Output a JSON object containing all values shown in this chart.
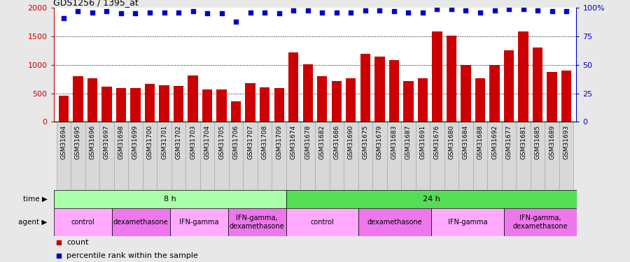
{
  "title": "GDS1256 / 1395_at",
  "categories": [
    "GSM31694",
    "GSM31695",
    "GSM31696",
    "GSM31697",
    "GSM31698",
    "GSM31699",
    "GSM31700",
    "GSM31701",
    "GSM31702",
    "GSM31703",
    "GSM31704",
    "GSM31705",
    "GSM31706",
    "GSM31707",
    "GSM31708",
    "GSM31709",
    "GSM31674",
    "GSM31678",
    "GSM31682",
    "GSM31686",
    "GSM31690",
    "GSM31675",
    "GSM31679",
    "GSM31683",
    "GSM31687",
    "GSM31691",
    "GSM31676",
    "GSM31680",
    "GSM31684",
    "GSM31688",
    "GSM31692",
    "GSM31677",
    "GSM31681",
    "GSM31685",
    "GSM31689",
    "GSM31693"
  ],
  "bar_values": [
    460,
    800,
    770,
    620,
    590,
    590,
    670,
    640,
    625,
    810,
    570,
    570,
    360,
    680,
    610,
    590,
    1220,
    1010,
    800,
    720,
    770,
    1200,
    1140,
    1080,
    720,
    770,
    1590,
    1510,
    1000,
    760,
    1000,
    1250,
    1590,
    1310,
    870,
    900
  ],
  "percentile_values": [
    91,
    97,
    96,
    97,
    95,
    95,
    96,
    96,
    96,
    97,
    95,
    95,
    88,
    96,
    96,
    95,
    98,
    98,
    96,
    96,
    96,
    98,
    98,
    97,
    96,
    96,
    99,
    99,
    98,
    96,
    98,
    99,
    99,
    98,
    97,
    97
  ],
  "bar_color": "#cc0000",
  "dot_color": "#0000cc",
  "ylim_left": [
    0,
    2000
  ],
  "ylim_right": [
    0,
    100
  ],
  "yticks_left": [
    0,
    500,
    1000,
    1500,
    2000
  ],
  "yticks_right": [
    0,
    25,
    50,
    75,
    100
  ],
  "ytick_labels_right": [
    "0",
    "25",
    "50",
    "75",
    "100%"
  ],
  "grid_values": [
    500,
    1000,
    1500
  ],
  "time_groups": [
    {
      "label": "8 h",
      "start": 0,
      "end": 16,
      "color": "#aaffaa"
    },
    {
      "label": "24 h",
      "start": 16,
      "end": 36,
      "color": "#55dd55"
    }
  ],
  "agent_groups": [
    {
      "label": "control",
      "start": 0,
      "end": 4,
      "color": "#ffaaff"
    },
    {
      "label": "dexamethasone",
      "start": 4,
      "end": 8,
      "color": "#ee77ee"
    },
    {
      "label": "IFN-gamma",
      "start": 8,
      "end": 12,
      "color": "#ffaaff"
    },
    {
      "label": "IFN-gamma,\ndexamethasone",
      "start": 12,
      "end": 16,
      "color": "#ee77ee"
    },
    {
      "label": "control",
      "start": 16,
      "end": 21,
      "color": "#ffaaff"
    },
    {
      "label": "dexamethasone",
      "start": 21,
      "end": 26,
      "color": "#ee77ee"
    },
    {
      "label": "IFN-gamma",
      "start": 26,
      "end": 31,
      "color": "#ffaaff"
    },
    {
      "label": "IFN-gamma,\ndexamethasone",
      "start": 31,
      "end": 36,
      "color": "#ee77ee"
    }
  ],
  "bg_color": "#e8e8e8",
  "plot_bg": "#ffffff",
  "left_tick_color": "#cc0000",
  "right_tick_color": "#0000cc",
  "xtick_bg": "#d8d8d8",
  "legend_items": [
    {
      "label": "count",
      "color": "#cc0000"
    },
    {
      "label": "percentile rank within the sample",
      "color": "#0000cc"
    }
  ]
}
